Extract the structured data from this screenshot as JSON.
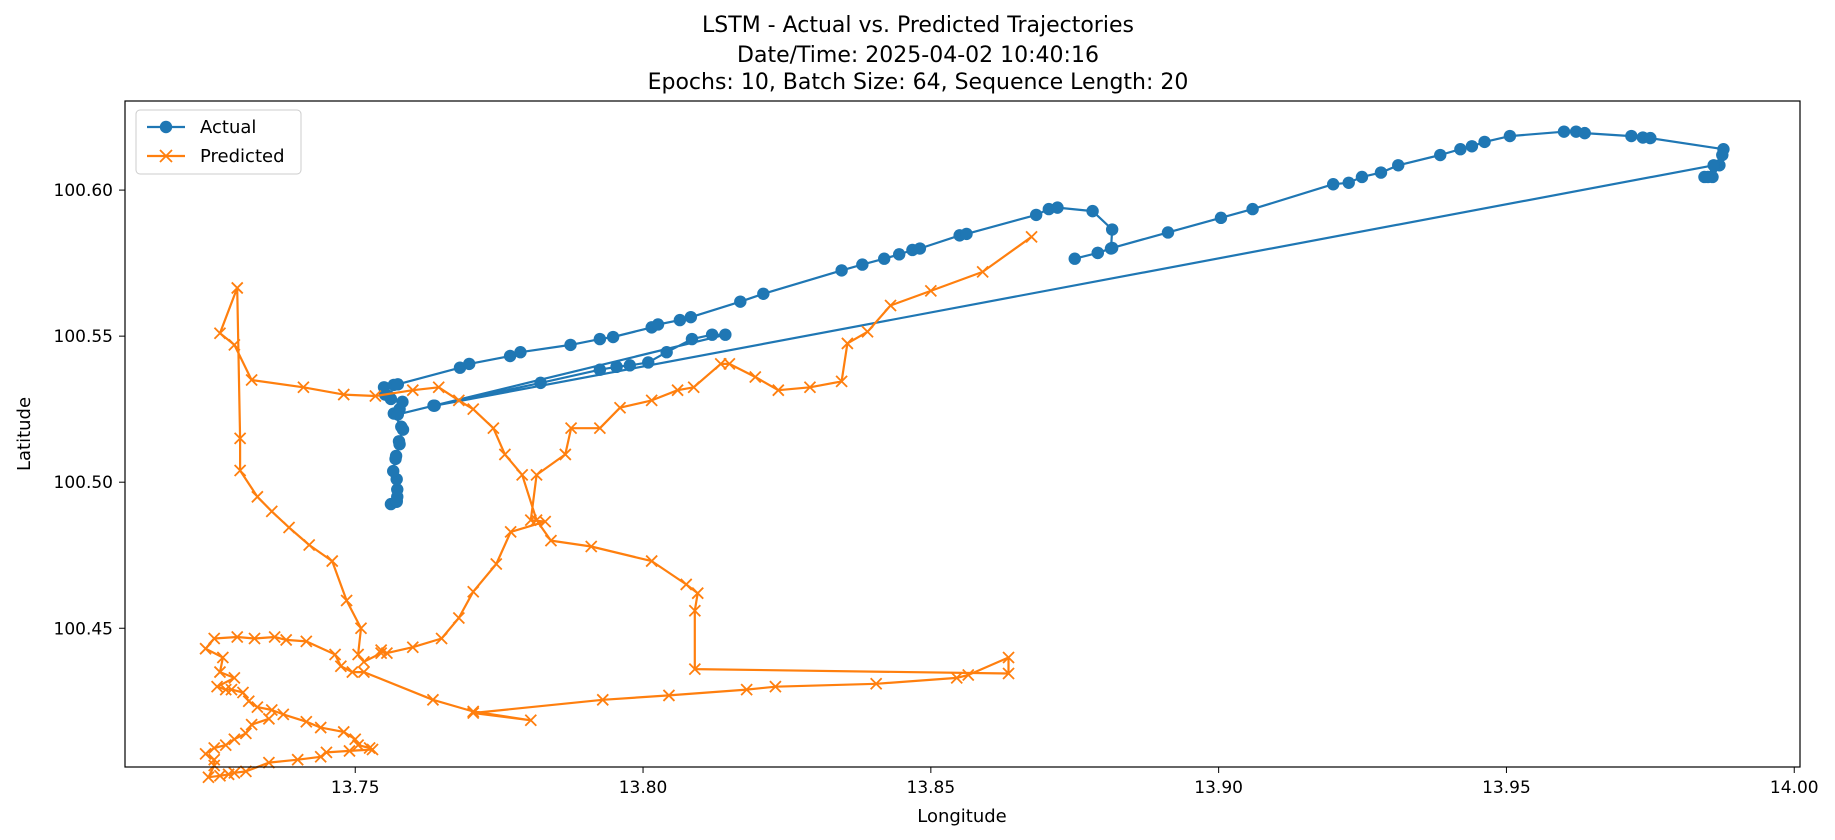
{
  "chart_data": {
    "type": "line",
    "title": [
      "LSTM - Actual vs. Predicted Trajectories",
      "Date/Time: 2025-04-02 10:40:16",
      "Epochs: 10, Batch Size: 64, Sequence Length: 20"
    ],
    "xlabel": "Longitude",
    "ylabel": "Latitude",
    "xlim": [
      13.71,
      14.001
    ],
    "ylim": [
      100.4025,
      100.6305
    ],
    "xticks": [
      13.75,
      13.8,
      13.85,
      13.9,
      13.95,
      14.0
    ],
    "xtick_labels": [
      "13.75",
      "13.80",
      "13.85",
      "13.90",
      "13.95",
      "14.00"
    ],
    "yticks": [
      100.45,
      100.5,
      100.55,
      100.6
    ],
    "ytick_labels": [
      "100.45",
      "100.50",
      "100.55",
      "100.60"
    ],
    "grid": false,
    "legend": "upper-left",
    "series": [
      {
        "name": "Actual",
        "marker": "o",
        "color": "#1f77b4",
        "x": [
          13.7562,
          13.7572,
          13.7572,
          13.7573,
          13.7573,
          13.7572,
          13.7566,
          13.757,
          13.7571,
          13.7577,
          13.7576,
          13.7583,
          13.758,
          13.7567,
          13.7577,
          13.7582,
          13.7562,
          13.7558,
          13.7552,
          13.755,
          13.7567,
          13.7574,
          13.7682,
          13.7698,
          13.7769,
          13.7787,
          13.7874,
          13.7925,
          13.7948,
          13.8015,
          13.8026,
          13.8064,
          13.8083,
          13.8169,
          13.8209,
          13.8345,
          13.8381,
          13.8419,
          13.8445,
          13.8468,
          13.8481,
          13.855,
          13.8562,
          13.8683,
          13.8705,
          13.872,
          13.8781,
          13.8815,
          13.8813,
          13.879,
          13.875,
          13.879,
          13.8815,
          13.8912,
          13.9004,
          13.9059,
          13.9199,
          13.9226,
          13.9249,
          13.9282,
          13.9312,
          13.9385,
          13.942,
          13.944,
          13.9462,
          13.9506,
          13.96,
          13.9621,
          13.9636,
          13.9717,
          13.9737,
          13.975,
          13.9877,
          13.9875,
          13.987,
          13.9858,
          13.9844,
          13.985,
          13.986,
          13.7638,
          13.7822,
          13.7925,
          13.7954,
          13.7977,
          13.8009,
          13.8041,
          13.8085,
          13.812,
          13.8143,
          13.7636,
          13.7574
        ],
        "y": [
          100.4925,
          100.4933,
          100.4937,
          100.495,
          100.4975,
          100.501,
          100.5038,
          100.508,
          100.509,
          100.513,
          100.514,
          100.518,
          100.519,
          100.5235,
          100.525,
          100.5275,
          100.5285,
          100.5295,
          100.53,
          100.5325,
          100.5333,
          100.5335,
          100.5392,
          100.5405,
          100.5432,
          100.5445,
          100.547,
          100.549,
          100.5497,
          100.553,
          100.554,
          100.5555,
          100.5565,
          100.5618,
          100.5645,
          100.5725,
          100.5745,
          100.5765,
          100.578,
          100.5795,
          100.58,
          100.5845,
          100.585,
          100.5915,
          100.5935,
          100.594,
          100.5928,
          100.5865,
          100.58,
          100.5785,
          100.5765,
          100.5785,
          100.5802,
          100.5855,
          100.5905,
          100.5935,
          100.602,
          100.6025,
          100.6045,
          100.606,
          100.6085,
          100.612,
          100.614,
          100.615,
          100.6165,
          100.6185,
          100.62,
          100.62,
          100.6195,
          100.6185,
          100.618,
          100.6178,
          100.614,
          100.612,
          100.6085,
          100.6045,
          100.6045,
          100.6045,
          100.6085,
          100.5262,
          100.534,
          100.5385,
          100.5395,
          100.54,
          100.541,
          100.5445,
          100.549,
          100.5505,
          100.5505,
          100.5262,
          100.5232
        ]
      },
      {
        "name": "Predicted",
        "marker": "x",
        "color": "#ff7f0e",
        "x": [
          13.8675,
          13.859,
          13.85,
          13.843,
          13.839,
          13.8355,
          13.8345,
          13.829,
          13.8235,
          13.8195,
          13.815,
          13.8135,
          13.8088,
          13.806,
          13.8015,
          13.796,
          13.7925,
          13.7875,
          13.7865,
          13.7815,
          13.7805,
          13.783,
          13.777,
          13.7745,
          13.7705,
          13.768,
          13.765,
          13.76,
          13.7555,
          13.7545,
          13.7545,
          13.7515,
          13.7505,
          13.751,
          13.7485,
          13.746,
          13.742,
          13.7385,
          13.7355,
          13.733,
          13.73,
          13.73,
          13.7295,
          13.7265,
          13.729,
          13.732,
          13.741,
          13.748,
          13.7535,
          13.76,
          13.7645,
          13.768,
          13.7705,
          13.774,
          13.776,
          13.779,
          13.7815,
          13.784,
          13.791,
          13.8015,
          13.8075,
          13.8095,
          13.809,
          13.809,
          13.8635,
          13.8635,
          13.8565,
          13.8545,
          13.8405,
          13.823,
          13.818,
          13.8045,
          13.793,
          13.7705,
          13.7805,
          13.7705,
          13.7635,
          13.7515,
          13.7495,
          13.7475,
          13.7465,
          13.7415,
          13.738,
          13.736,
          13.7325,
          13.7295,
          13.7255,
          13.724,
          13.727,
          13.7265,
          13.729,
          13.726,
          13.7275,
          13.7285,
          13.7305,
          13.7315,
          13.733,
          13.7355,
          13.7375,
          13.7415,
          13.744,
          13.748,
          13.75,
          13.7505,
          13.7525,
          13.753,
          13.749,
          13.745,
          13.744,
          13.74,
          13.735,
          13.731,
          13.729,
          13.728,
          13.7265,
          13.7245,
          13.7255,
          13.7255,
          13.724,
          13.7255,
          13.7275,
          13.729,
          13.731,
          13.732,
          13.735
        ],
        "y": [
          100.584,
          100.572,
          100.5655,
          100.5605,
          100.5515,
          100.5475,
          100.5345,
          100.5325,
          100.5315,
          100.536,
          100.5405,
          100.5405,
          100.5325,
          100.5315,
          100.528,
          100.5255,
          100.5185,
          100.5185,
          100.5095,
          100.5025,
          100.487,
          100.4865,
          100.483,
          100.472,
          100.4625,
          100.4535,
          100.4465,
          100.4435,
          100.4415,
          100.4425,
          100.4415,
          100.4385,
          100.441,
          100.45,
          100.4595,
          100.473,
          100.4785,
          100.4845,
          100.49,
          100.495,
          100.504,
          100.515,
          100.5665,
          100.551,
          100.547,
          100.535,
          100.5325,
          100.53,
          100.5295,
          100.5315,
          100.5325,
          100.528,
          100.525,
          100.5185,
          100.5095,
          100.5025,
          100.487,
          100.48,
          100.478,
          100.473,
          100.465,
          100.462,
          100.456,
          100.436,
          100.4345,
          100.44,
          100.434,
          100.433,
          100.431,
          100.43,
          100.429,
          100.427,
          100.4255,
          100.421,
          100.4185,
          100.4215,
          100.4255,
          100.435,
          100.435,
          100.437,
          100.441,
          100.4455,
          100.446,
          100.447,
          100.4465,
          100.447,
          100.4465,
          100.443,
          100.44,
          100.435,
          100.433,
          100.43,
          100.429,
          100.429,
          100.428,
          100.425,
          100.423,
          100.422,
          100.4205,
          100.418,
          100.416,
          100.4145,
          100.412,
          100.41,
          100.409,
          100.4085,
          100.408,
          100.4075,
          100.406,
          100.405,
          100.404,
          100.401,
          100.4005,
          100.4,
          100.3995,
          100.399,
          100.403,
          100.405,
          100.407,
          100.409,
          100.41,
          100.412,
          100.414,
          100.417,
          100.419
        ]
      }
    ]
  }
}
